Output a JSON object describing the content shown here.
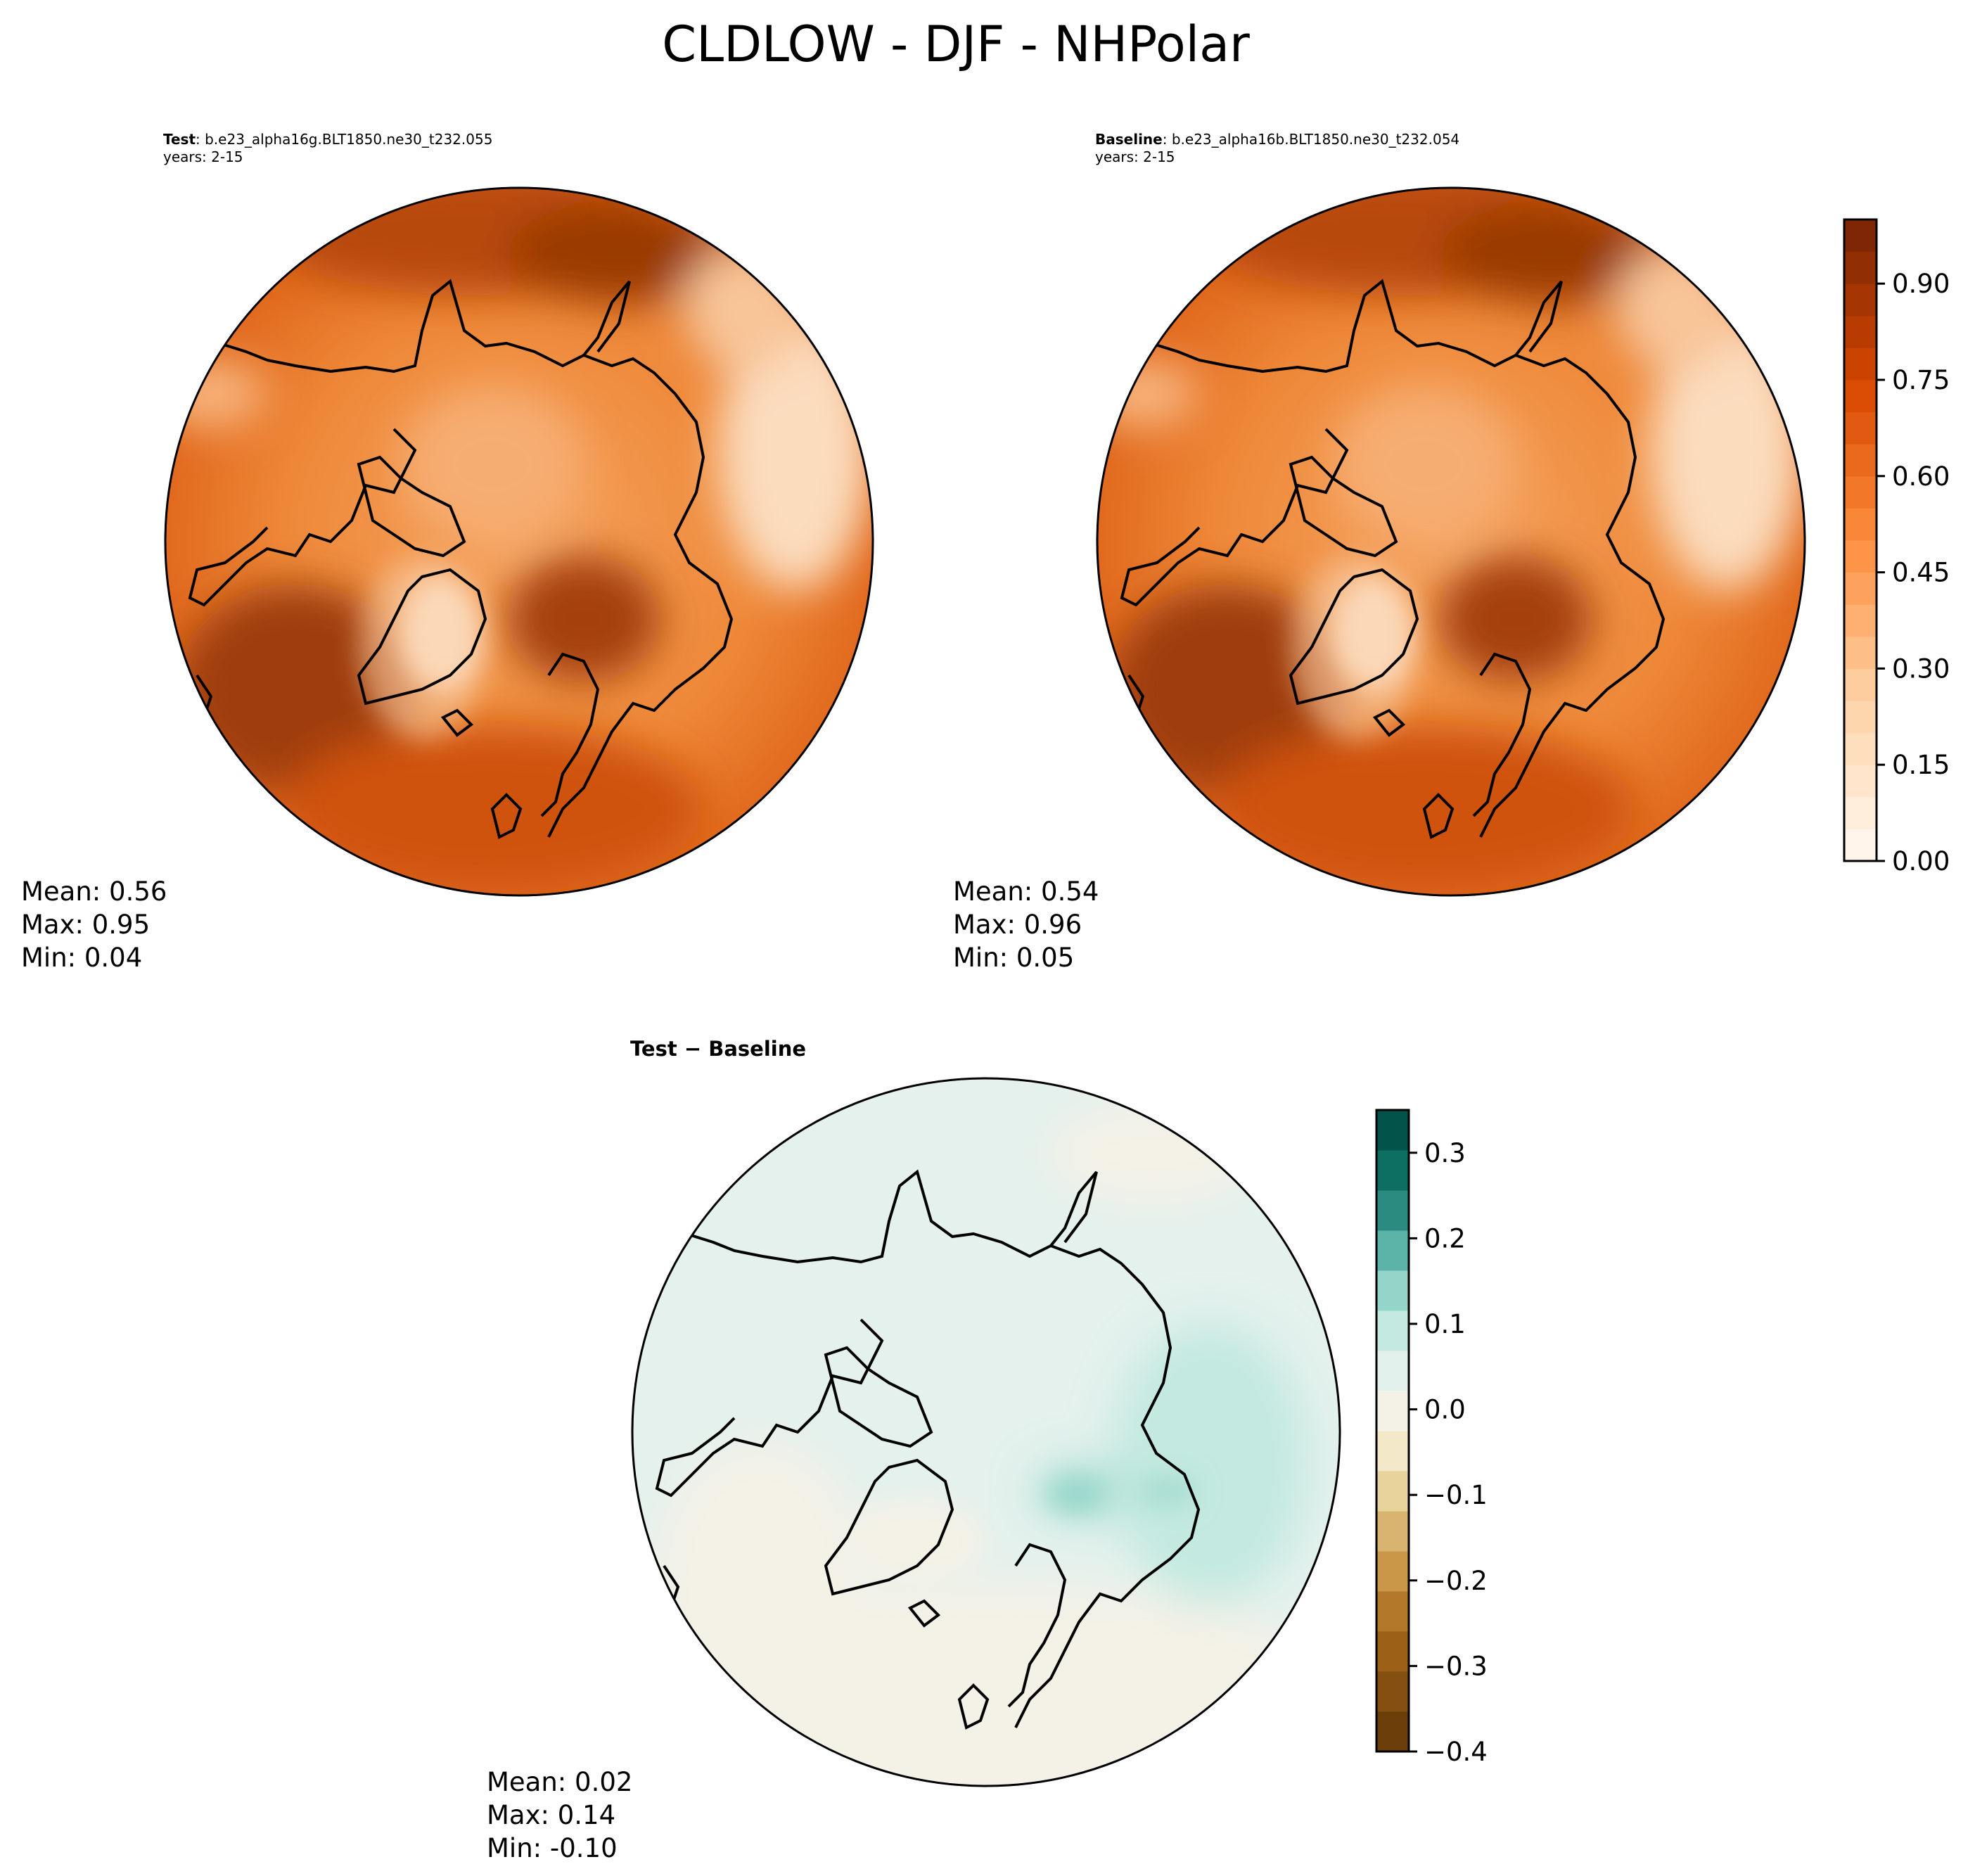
{
  "figure": {
    "title": "CLDLOW - DJF - NHPolar"
  },
  "panels": {
    "test": {
      "label": "Test",
      "case": ": b.e23_alpha16g.BLT1850.ne30_t232.055",
      "years": "years: 2-15",
      "mean": "Mean:  0.56",
      "max": "Max:  0.95",
      "min": "Min:  0.04"
    },
    "baseline": {
      "label": "Baseline",
      "case": ": b.e23_alpha16b.BLT1850.ne30_t232.054",
      "years": "years: 2-15",
      "mean": "Mean:  0.54",
      "max": "Max:  0.96",
      "min": "Min:  0.05"
    },
    "difference": {
      "label": "Test − Baseline",
      "mean": "Mean:  0.02",
      "max": "Max:  0.14",
      "min": "Min: -0.10"
    }
  },
  "colorbars": {
    "main": {
      "colormap": "Oranges",
      "range": [
        0.0,
        1.0
      ],
      "ticks": [
        "0.00",
        "0.15",
        "0.30",
        "0.45",
        "0.60",
        "0.75",
        "0.90"
      ],
      "tick_values": [
        0.0,
        0.15,
        0.3,
        0.45,
        0.6,
        0.75,
        0.9
      ],
      "levels": 20
    },
    "diff": {
      "colormap": "BrBG",
      "range": [
        -0.4,
        0.35
      ],
      "ticks": [
        "−0.4",
        "−0.3",
        "−0.2",
        "−0.1",
        "0.0",
        "0.1",
        "0.2",
        "0.3"
      ],
      "tick_values": [
        -0.4,
        -0.3,
        -0.2,
        -0.1,
        0.0,
        0.1,
        0.2,
        0.3
      ],
      "colors": [
        "#6b3d09",
        "#844e0f",
        "#9b5f16",
        "#b4782a",
        "#c99747",
        "#d9b470",
        "#e9d39d",
        "#f3e9c8",
        "#f4f1e6",
        "#e3f1ed",
        "#c3e9e0",
        "#93d5c8",
        "#5cb3a7",
        "#2c8b80",
        "#0d6e62",
        "#02544a"
      ]
    }
  }
}
